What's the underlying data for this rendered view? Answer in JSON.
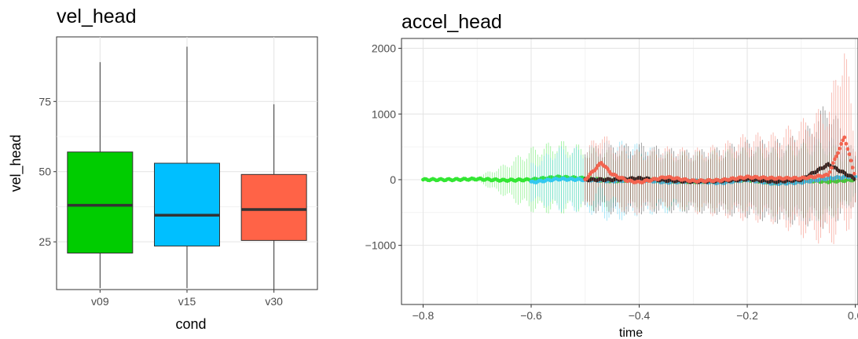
{
  "chart_data": [
    {
      "type": "box",
      "title": "vel_head",
      "xlabel": "cond",
      "ylabel": "vel_head",
      "ylim": [
        8,
        98
      ],
      "yticks": [
        25,
        50,
        75
      ],
      "grid": true,
      "categories": [
        "v09",
        "v15",
        "v30"
      ],
      "boxes": [
        {
          "name": "v09",
          "min": 8.5,
          "q1": 21,
          "median": 38,
          "q3": 57,
          "max": 89,
          "color": "#00cc00"
        },
        {
          "name": "v15",
          "min": 8.5,
          "q1": 23.5,
          "median": 34.5,
          "q3": 53,
          "max": 94.5,
          "color": "#00bfff"
        },
        {
          "name": "v30",
          "min": 8,
          "q1": 25.5,
          "median": 36.5,
          "q3": 49,
          "max": 74,
          "color": "#ff6347"
        }
      ]
    },
    {
      "type": "line",
      "title": "accel_head",
      "xlabel": "time",
      "ylabel": "",
      "xlim": [
        -0.84,
        0.005
      ],
      "ylim": [
        -1900,
        2150
      ],
      "xticks": [
        -0.8,
        -0.6,
        -0.4,
        -0.2,
        0.0
      ],
      "xticklabels": [
        "−0.8",
        "−0.6",
        "−0.4",
        "−0.2",
        "0.0"
      ],
      "yticks": [
        -1000,
        0,
        1000,
        2000
      ],
      "yticklabels": [
        "−1000",
        "0",
        "1000",
        "2000"
      ],
      "grid": true,
      "series": [
        {
          "color": "#33e633",
          "x": [
            -0.8,
            -0.75,
            -0.7,
            -0.65,
            -0.6,
            -0.55,
            -0.5,
            -0.45,
            -0.4,
            -0.35,
            -0.3,
            -0.25,
            -0.2,
            -0.15,
            -0.1,
            -0.05,
            0.0
          ],
          "y": [
            0,
            0,
            10,
            -10,
            0,
            40,
            20,
            -20,
            0,
            -20,
            -30,
            -20,
            0,
            -50,
            -10,
            -30,
            0
          ],
          "err": [
            10,
            15,
            40,
            250,
            500,
            570,
            500,
            470,
            450,
            450,
            460,
            480,
            500,
            530,
            580,
            620,
            300
          ]
        },
        {
          "color": "#33c8f0",
          "x": [
            -0.6,
            -0.55,
            -0.5,
            -0.45,
            -0.4,
            -0.35,
            -0.3,
            -0.25,
            -0.2,
            -0.15,
            -0.1,
            -0.05,
            0.0
          ],
          "y": [
            -40,
            10,
            0,
            -20,
            0,
            -40,
            -20,
            -50,
            0,
            -60,
            -40,
            20,
            50
          ],
          "err": [
            300,
            500,
            500,
            640,
            550,
            480,
            460,
            480,
            520,
            560,
            600,
            660,
            400
          ]
        },
        {
          "color": "#222222",
          "x": [
            -0.5,
            -0.45,
            -0.4,
            -0.35,
            -0.3,
            -0.25,
            -0.2,
            -0.15,
            -0.1,
            -0.05,
            0.0
          ],
          "y": [
            0,
            0,
            20,
            -10,
            -30,
            -20,
            10,
            -30,
            0,
            230,
            10
          ],
          "err": [
            500,
            530,
            550,
            500,
            480,
            520,
            600,
            640,
            700,
            1000,
            400
          ]
        },
        {
          "color": "#f26450",
          "x": [
            -0.5,
            -0.47,
            -0.45,
            -0.42,
            -0.4,
            -0.35,
            -0.3,
            -0.25,
            -0.2,
            -0.15,
            -0.1,
            -0.05,
            -0.02,
            0.0
          ],
          "y": [
            0,
            260,
            80,
            -20,
            -40,
            40,
            -20,
            -10,
            40,
            20,
            20,
            70,
            650,
            40
          ],
          "err": [
            500,
            480,
            500,
            520,
            500,
            470,
            500,
            560,
            680,
            700,
            900,
            1100,
            1550,
            600
          ]
        }
      ]
    }
  ]
}
